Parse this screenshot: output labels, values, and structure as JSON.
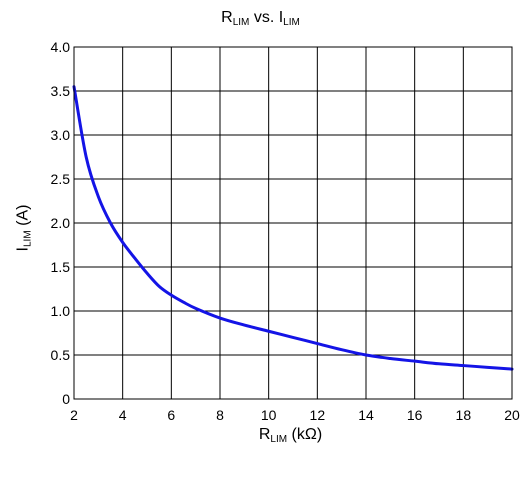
{
  "chart_data": {
    "type": "line",
    "title": {
      "main1": "R",
      "sub1": "LIM",
      "mid": " vs. I",
      "sub2": "LIM"
    },
    "xlabel": {
      "main": "R",
      "sub": "LIM",
      "tail": " (kΩ)"
    },
    "ylabel": {
      "main": "I",
      "sub": "LIM",
      "tail": " (A)"
    },
    "xlim": [
      2,
      20
    ],
    "ylim": [
      0,
      4.0
    ],
    "xticks": [
      "2",
      "4",
      "6",
      "8",
      "10",
      "12",
      "14",
      "16",
      "18",
      "20"
    ],
    "yticks": [
      "0",
      "0.5",
      "1.0",
      "1.5",
      "2.0",
      "2.5",
      "3.0",
      "3.5",
      "4.0"
    ],
    "grid": true,
    "series": [
      {
        "color": "#1414e6",
        "x": [
          2,
          2.5,
          3,
          3.5,
          4,
          4.5,
          5,
          5.5,
          6,
          6.5,
          7,
          8,
          9,
          10,
          11,
          12,
          13,
          14,
          15,
          16,
          17,
          18,
          19,
          20
        ],
        "y": [
          3.55,
          2.75,
          2.3,
          2.0,
          1.78,
          1.6,
          1.43,
          1.28,
          1.18,
          1.1,
          1.03,
          0.92,
          0.84,
          0.77,
          0.7,
          0.63,
          0.56,
          0.5,
          0.46,
          0.43,
          0.4,
          0.38,
          0.36,
          0.34
        ]
      }
    ]
  }
}
